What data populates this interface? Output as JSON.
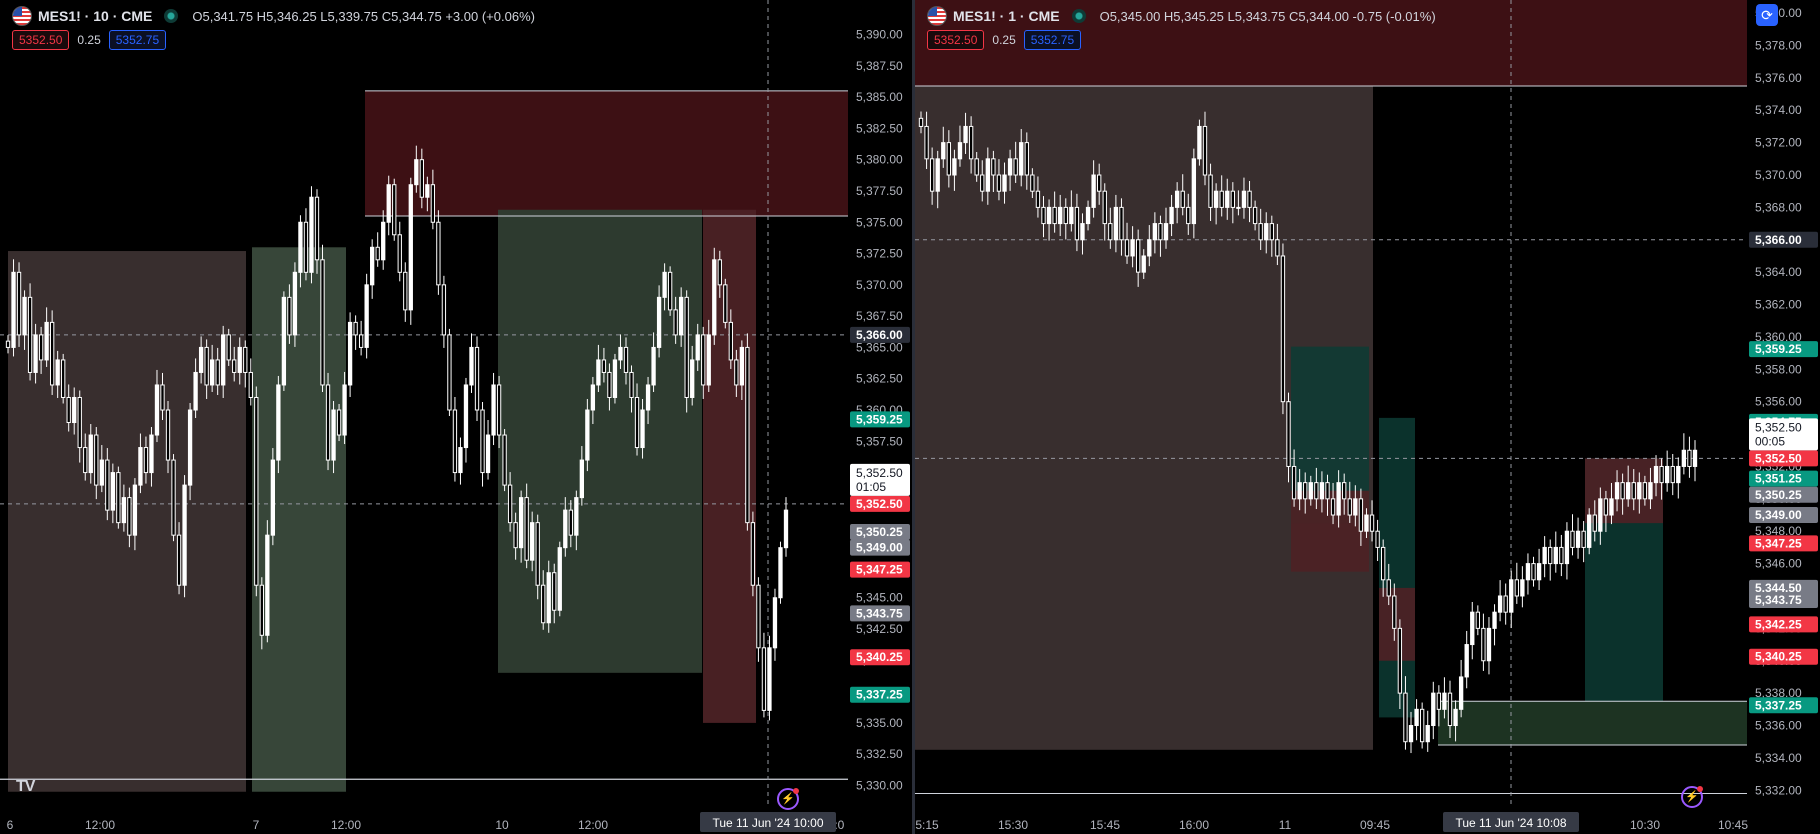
{
  "left": {
    "symbol": "MES1!",
    "interval": "10",
    "exchange": "CME",
    "symbol_line": "MES1! · 10 · CME",
    "ohlc": "O5,341.75 H5,346.25 L5,339.75 C5,344.75 +3.00 (+0.06%)",
    "sell_price": "5352.50",
    "spread": "0.25",
    "buy_price": "5352.75",
    "last_price_label": "5,352.50",
    "countdown": "01:05",
    "crosshair_price": "5,366.00",
    "crosshair_time": "Tue 11 Jun '24   10:00",
    "time_ticks": [
      "6",
      "12:00",
      "7",
      "12:00",
      "10",
      "12:00",
      "2:0"
    ]
  },
  "right": {
    "symbol": "MES1!",
    "interval": "1",
    "exchange": "CME",
    "symbol_line": "MES1! · 1 · CME",
    "ohlc": "O5,345.00 H5,345.25 L5,343.75 C5,344.00 -0.75 (-0.01%)",
    "sell_price": "5352.50",
    "spread": "0.25",
    "buy_price": "5352.75",
    "last_price_label": "5,352.50",
    "countdown": "00:05",
    "crosshair_price": "5,366.00",
    "crosshair_time": "Tue 11 Jun '24   10:08",
    "time_ticks": [
      "5:15",
      "15:30",
      "15:45",
      "16:00",
      "11",
      "09:45",
      "10:30",
      "10:45"
    ]
  },
  "colors": {
    "up_green": "#26a69a",
    "down_red": "#f23645",
    "gray_label": "#787b86",
    "background": "#000000",
    "candle": "#ffffff"
  },
  "chart_data": [
    {
      "type": "candlestick",
      "symbol": "MES1!",
      "interval": "10",
      "ylim": [
        5329.0,
        5391.0
      ],
      "y_ticks": [
        5330.0,
        5332.5,
        5335.0,
        5337.5,
        5340.0,
        5342.5,
        5345.0,
        5347.5,
        5350.0,
        5352.5,
        5355.0,
        5357.5,
        5360.0,
        5362.5,
        5365.0,
        5367.5,
        5370.0,
        5372.5,
        5375.0,
        5377.5,
        5380.0,
        5382.5,
        5385.0,
        5387.5,
        5390.0
      ],
      "y_tick_labels": [
        "5,330.00",
        "5,332.50",
        "5,335.00",
        "5,337.50",
        "5,340.00",
        "5,342.50",
        "5,345.00",
        "5,347.50",
        "5,350.00",
        "5,352.50",
        "5,355.00",
        "5,357.50",
        "5,360.00",
        "5,362.50",
        "5,365.00",
        "5,367.50",
        "5,370.00",
        "5,372.50",
        "5,375.00",
        "5,377.50",
        "5,380.00",
        "5,382.50",
        "5,385.00",
        "5,387.50",
        "5,390.00"
      ],
      "price_badges": [
        {
          "price": 5359.25,
          "label": "5,359.25",
          "kind": "green"
        },
        {
          "price": 5354.75,
          "label": "5,354.75",
          "kind": "green"
        },
        {
          "price": 5352.5,
          "label": "5,352.50",
          "kind": "red"
        },
        {
          "price": 5350.25,
          "label": "5,350.25",
          "kind": "gray"
        },
        {
          "price": 5349.0,
          "label": "5,349.00",
          "kind": "gray"
        },
        {
          "price": 5347.25,
          "label": "5,347.25",
          "kind": "red"
        },
        {
          "price": 5343.75,
          "label": "5,343.75",
          "kind": "gray"
        },
        {
          "price": 5340.25,
          "label": "5,340.25",
          "kind": "red"
        },
        {
          "price": 5337.25,
          "label": "5,337.25",
          "kind": "green"
        },
        {
          "price": 5366.0,
          "label": "5,366.00",
          "kind": "crosshair"
        }
      ],
      "horizontal_lines": [
        5366.0,
        5352.5,
        5330.5
      ],
      "candles_close": [
        5365.0,
        5371.0,
        5366.0,
        5369.0,
        5363.0,
        5366.0,
        5364.0,
        5367.0,
        5362.0,
        5364.0,
        5361.0,
        5359.0,
        5361.0,
        5357.0,
        5355.0,
        5358.0,
        5354.0,
        5356.0,
        5352.0,
        5355.0,
        5351.0,
        5353.0,
        5350.0,
        5354.0,
        5357.0,
        5355.0,
        5358.0,
        5362.0,
        5360.0,
        5356.0,
        5350.0,
        5346.0,
        5354.0,
        5360.0,
        5363.0,
        5365.0,
        5362.0,
        5364.0,
        5362.0,
        5366.0,
        5364.0,
        5363.0,
        5365.0,
        5363.0,
        5361.0,
        5346.0,
        5342.0,
        5350.0,
        5356.0,
        5362.0,
        5369.0,
        5366.0,
        5371.0,
        5375.0,
        5371.0,
        5377.0,
        5372.0,
        5362.0,
        5356.0,
        5360.0,
        5358.0,
        5362.0,
        5367.0,
        5366.0,
        5365.0,
        5370.0,
        5373.0,
        5372.0,
        5375.0,
        5378.0,
        5374.0,
        5371.0,
        5368.0,
        5378.0,
        5380.0,
        5377.0,
        5378.0,
        5375.0,
        5370.0,
        5366.0,
        5360.0,
        5355.0,
        5357.0,
        5362.0,
        5365.0,
        5360.0,
        5355.0,
        5358.0,
        5362.0,
        5358.0,
        5354.0,
        5351.0,
        5349.0,
        5353.0,
        5348.0,
        5351.0,
        5346.0,
        5343.0,
        5347.0,
        5344.0,
        5349.0,
        5352.0,
        5350.0,
        5353.0,
        5356.0,
        5360.0,
        5362.0,
        5364.0,
        5363.0,
        5361.0,
        5364.0,
        5365.0,
        5363.0,
        5361.0,
        5357.0,
        5360.0,
        5362.0,
        5365.0,
        5369.0,
        5371.0,
        5368.0,
        5366.0,
        5369.0,
        5361.0,
        5364.0,
        5366.0,
        5362.0,
        5366.0,
        5372.0,
        5370.0,
        5367.0,
        5364.0,
        5362.0,
        5365.0,
        5351.0,
        5346.0,
        5341.0,
        5336.0,
        5341.0,
        5345.0,
        5349.0,
        5352.0
      ],
      "zones": [
        {
          "from": 5329.5,
          "to": 5373.0,
          "kind": "demand-faded"
        },
        {
          "from": 5329.5,
          "to": 5372.7,
          "kind": "supply-faded"
        },
        {
          "from": 5375.5,
          "to": 5385.5,
          "kind": "supply"
        },
        {
          "from": 5339.0,
          "to": 5376.0,
          "kind": "green-box"
        },
        {
          "from": 5335.0,
          "to": 5376.0,
          "kind": "red-box"
        }
      ]
    },
    {
      "type": "candlestick",
      "symbol": "MES1!",
      "interval": "1",
      "ylim": [
        5331.4,
        5380.5
      ],
      "y_ticks": [
        5332,
        5334,
        5336,
        5338,
        5340,
        5342,
        5344,
        5346,
        5348,
        5350,
        5352,
        5354,
        5356,
        5358,
        5360,
        5362,
        5364,
        5366,
        5368,
        5370,
        5372,
        5374,
        5376,
        5378,
        5380
      ],
      "y_tick_labels": [
        "5,332.00",
        "5,334.00",
        "5,336.00",
        "5,338.00",
        "5,340.00",
        "5,342.00",
        "5,344.00",
        "5,346.00",
        "5,348.00",
        "5,350.00",
        "5,352.00",
        "5,354.00",
        "5,356.00",
        "5,358.00",
        "5,360.00",
        "5,362.00",
        "5,364.00",
        "5,366.00",
        "5,368.00",
        "5,370.00",
        "5,372.00",
        "5,374.00",
        "5,376.00",
        "5,378.00",
        "5,380.00"
      ],
      "price_badges": [
        {
          "price": 5359.25,
          "label": "5,359.25",
          "kind": "green"
        },
        {
          "price": 5354.75,
          "label": "5,354.75",
          "kind": "green"
        },
        {
          "price": 5352.5,
          "label": "5,352.50",
          "kind": "red"
        },
        {
          "price": 5351.25,
          "label": "5,351.25",
          "kind": "green"
        },
        {
          "price": 5350.25,
          "label": "5,350.25",
          "kind": "gray"
        },
        {
          "price": 5349.0,
          "label": "5,349.00",
          "kind": "gray"
        },
        {
          "price": 5347.25,
          "label": "5,347.25",
          "kind": "red"
        },
        {
          "price": 5344.5,
          "label": "5,344.50",
          "kind": "gray"
        },
        {
          "price": 5343.75,
          "label": "5,343.75",
          "kind": "gray"
        },
        {
          "price": 5342.25,
          "label": "5,342.25",
          "kind": "red"
        },
        {
          "price": 5340.25,
          "label": "5,340.25",
          "kind": "red"
        },
        {
          "price": 5337.25,
          "label": "5,337.25",
          "kind": "green"
        },
        {
          "price": 5366.0,
          "label": "5,366.00",
          "kind": "crosshair"
        }
      ],
      "horizontal_lines": [
        5375.5,
        5366.0,
        5352.5,
        5331.8
      ],
      "candles_close": [
        5373.0,
        5371.0,
        5369.0,
        5371.0,
        5372.0,
        5370.0,
        5371.0,
        5372.0,
        5373.0,
        5371.0,
        5370.0,
        5369.0,
        5371.0,
        5370.0,
        5369.0,
        5370.0,
        5371.0,
        5370.0,
        5372.0,
        5370.0,
        5369.0,
        5368.0,
        5367.0,
        5368.0,
        5367.0,
        5368.0,
        5367.0,
        5368.0,
        5366.0,
        5367.0,
        5368.0,
        5370.0,
        5369.0,
        5367.0,
        5366.0,
        5368.0,
        5366.0,
        5365.0,
        5366.0,
        5364.0,
        5365.0,
        5366.0,
        5367.0,
        5366.0,
        5367.0,
        5368.0,
        5369.0,
        5368.0,
        5367.0,
        5371.0,
        5373.0,
        5370.0,
        5368.0,
        5369.0,
        5368.0,
        5369.0,
        5368.0,
        5368.0,
        5369.0,
        5368.0,
        5367.0,
        5366.0,
        5367.0,
        5366.0,
        5365.0,
        5356.0,
        5352.0,
        5350.0,
        5351.0,
        5350.0,
        5351.0,
        5350.0,
        5351.0,
        5350.0,
        5349.0,
        5351.0,
        5350.0,
        5349.0,
        5350.0,
        5348.0,
        5349.0,
        5348.0,
        5347.0,
        5345.0,
        5344.0,
        5342.0,
        5338.0,
        5335.0,
        5336.0,
        5337.0,
        5335.0,
        5336.0,
        5338.0,
        5337.0,
        5338.0,
        5336.0,
        5337.0,
        5339.0,
        5341.0,
        5343.0,
        5342.0,
        5340.0,
        5342.0,
        5343.0,
        5344.0,
        5343.0,
        5345.0,
        5344.0,
        5345.0,
        5346.0,
        5345.0,
        5346.0,
        5347.0,
        5346.0,
        5347.0,
        5346.0,
        5348.0,
        5347.0,
        5348.0,
        5347.0,
        5349.0,
        5348.0,
        5350.0,
        5349.0,
        5350.0,
        5351.0,
        5350.0,
        5351.0,
        5350.0,
        5351.0,
        5350.0,
        5351.0,
        5352.0,
        5351.0,
        5352.0,
        5351.0,
        5352.0,
        5353.0,
        5352.0,
        5353.0
      ],
      "zones": [
        {
          "from": 5334.5,
          "to": 5375.5,
          "kind": "supply-faded"
        },
        {
          "from": 5375.5,
          "to": 5381.0,
          "kind": "supply"
        },
        {
          "from": 5348.5,
          "to": 5359.4,
          "kind": "teal-box"
        },
        {
          "from": 5345.5,
          "to": 5350.5,
          "kind": "red-box"
        },
        {
          "from": 5336.5,
          "to": 5355.0,
          "kind": "teal-box"
        },
        {
          "from": 5340.0,
          "to": 5344.5,
          "kind": "red-box"
        },
        {
          "from": 5337.0,
          "to": 5352.5,
          "kind": "teal-box"
        },
        {
          "from": 5348.5,
          "to": 5352.5,
          "kind": "red-box"
        },
        {
          "from": 5334.8,
          "to": 5337.5,
          "kind": "demand"
        }
      ]
    }
  ]
}
